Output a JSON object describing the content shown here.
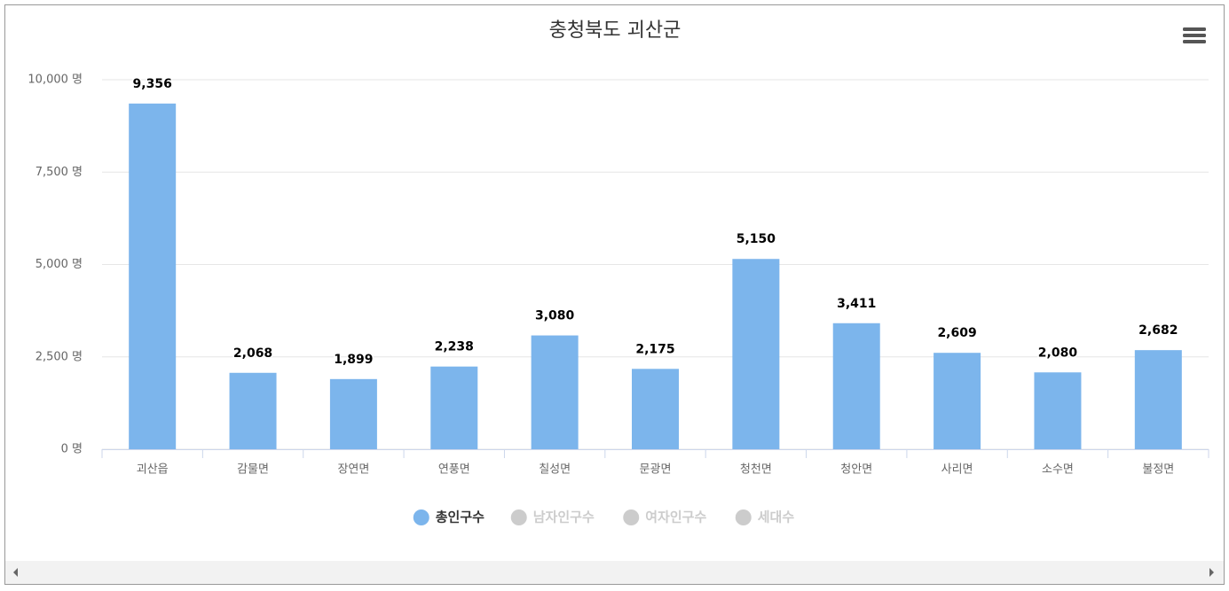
{
  "chart_data": {
    "type": "bar",
    "title": "충청북도 괴산군",
    "categories": [
      "괴산읍",
      "감물면",
      "장연면",
      "연풍면",
      "칠성면",
      "문광면",
      "청천면",
      "청안면",
      "사리면",
      "소수면",
      "불정면"
    ],
    "series": [
      {
        "name": "총인구수",
        "color": "#7cb5ec",
        "values": [
          9356,
          2068,
          1899,
          2238,
          3080,
          2175,
          5150,
          3411,
          2609,
          2080,
          2682
        ],
        "value_labels": [
          "9,356",
          "2,068",
          "1,899",
          "2,238",
          "3,080",
          "2,175",
          "5,150",
          "3,411",
          "2,609",
          "2,080",
          "2,682"
        ]
      },
      {
        "name": "남자인구수",
        "visible": false
      },
      {
        "name": "여자인구수",
        "visible": false
      },
      {
        "name": "세대수",
        "visible": false
      }
    ],
    "ylim": [
      0,
      10000
    ],
    "yticks": [
      {
        "value": 0,
        "label": "0 명"
      },
      {
        "value": 2500,
        "label": "2,500 명"
      },
      {
        "value": 5000,
        "label": "5,000 명"
      },
      {
        "value": 7500,
        "label": "7,500 명"
      },
      {
        "value": 10000,
        "label": "10,000 명"
      }
    ],
    "grid": true
  }
}
